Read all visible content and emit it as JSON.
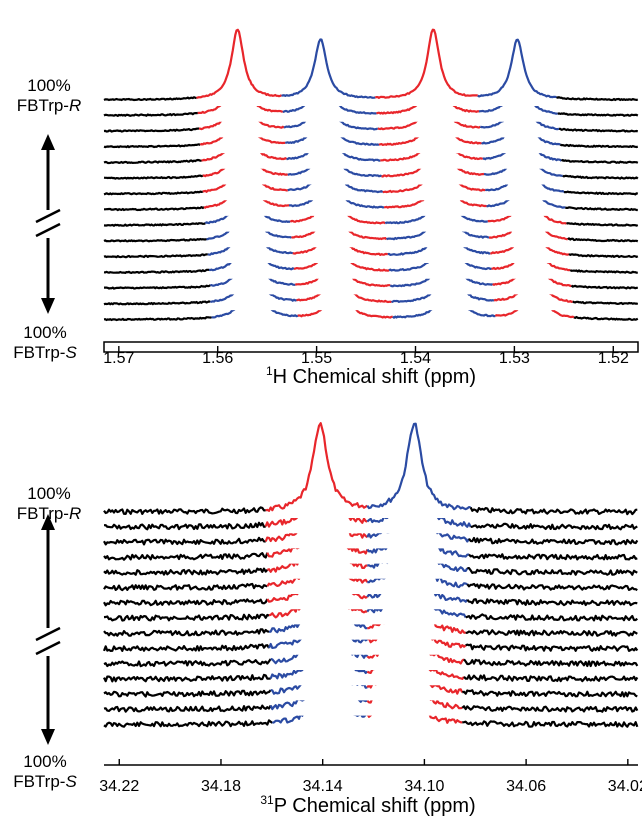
{
  "chart_data": [
    {
      "type": "line",
      "panel": "1H",
      "xlabel_sup": "1",
      "xlabel": "H Chemical shift (ppm)",
      "xlim": [
        1.5715,
        1.5175
      ],
      "ticks": [
        "1.57",
        "1.56",
        "1.55",
        "1.54",
        "1.53",
        "1.52"
      ],
      "tick_values": [
        1.57,
        1.56,
        1.55,
        1.54,
        1.53,
        1.52
      ],
      "top_label": [
        "100%",
        "FBTrp-",
        "R"
      ],
      "bottom_label": [
        "100%",
        "FBTrp-",
        "S"
      ],
      "trace_count": 15,
      "series_colors": {
        "R": "#e8262b",
        "S": "#2b4ba3",
        "baseline": "#000000"
      },
      "stacking": "R on top, S at bottom, axis break in middle",
      "peaks_R_top": [
        1.558,
        1.5496,
        1.5382,
        1.5297
      ],
      "peaks_S_bottom": [
        1.5565,
        1.5478,
        1.5365,
        1.5279
      ]
    },
    {
      "type": "line",
      "panel": "31P",
      "xlabel_sup": "31",
      "xlabel": "P Chemical shift (ppm)",
      "xlim": [
        34.226,
        34.016
      ],
      "ticks": [
        "34.22",
        "34.18",
        "34.14",
        "34.10",
        "34.06",
        "34.02"
      ],
      "tick_values": [
        34.22,
        34.18,
        34.14,
        34.1,
        34.06,
        34.02
      ],
      "top_label": [
        "100%",
        "FBTrp-",
        "R"
      ],
      "bottom_label": [
        "100%",
        "FBTrp-",
        "S"
      ],
      "trace_count": 15,
      "series_colors": {
        "R": "#e8262b",
        "S": "#2b4ba3",
        "baseline": "#000000"
      },
      "stacking": "R on top, S at bottom, axis break in middle",
      "peaks_R_top": [
        34.141,
        34.104
      ],
      "peaks_S_bottom": [
        34.138,
        34.108
      ]
    }
  ]
}
